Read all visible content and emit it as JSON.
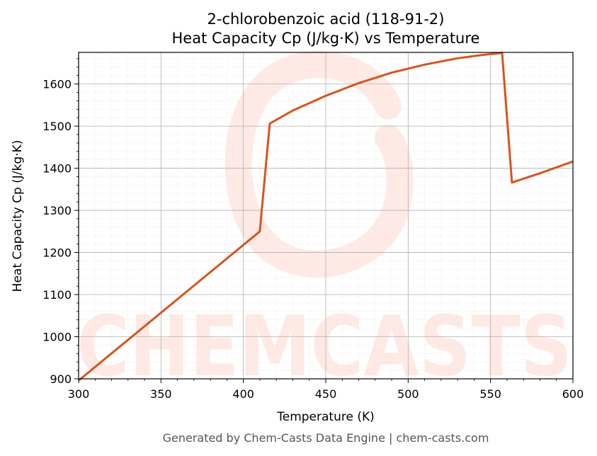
{
  "chart_data": {
    "type": "line",
    "title_line1": "2-chlorobenzoic acid (118-91-2)",
    "title_line2": "Heat Capacity Cp (J/kg·K) vs Temperature",
    "xlabel": "Temperature (K)",
    "ylabel": "Heat Capacity Cp (J/kg·K)",
    "xlim": [
      300,
      600
    ],
    "ylim": [
      900,
      1675
    ],
    "xticks": [
      300,
      350,
      400,
      450,
      500,
      550,
      600
    ],
    "yticks": [
      900,
      1000,
      1100,
      1200,
      1300,
      1400,
      1500,
      1600
    ],
    "grid": true,
    "series": [
      {
        "color": "#d9531e",
        "x": [
          300,
          410,
          416,
          430,
          450,
          470,
          490,
          510,
          530,
          545,
          557,
          563,
          580,
          600
        ],
        "y": [
          896,
          1250,
          1506,
          1537,
          1572,
          1602,
          1627,
          1646,
          1661,
          1669,
          1674,
          1366,
          1388,
          1416
        ]
      }
    ],
    "watermark": "CHEMCASTS"
  },
  "footer": "Generated by Chem-Casts Data Engine | chem-casts.com"
}
